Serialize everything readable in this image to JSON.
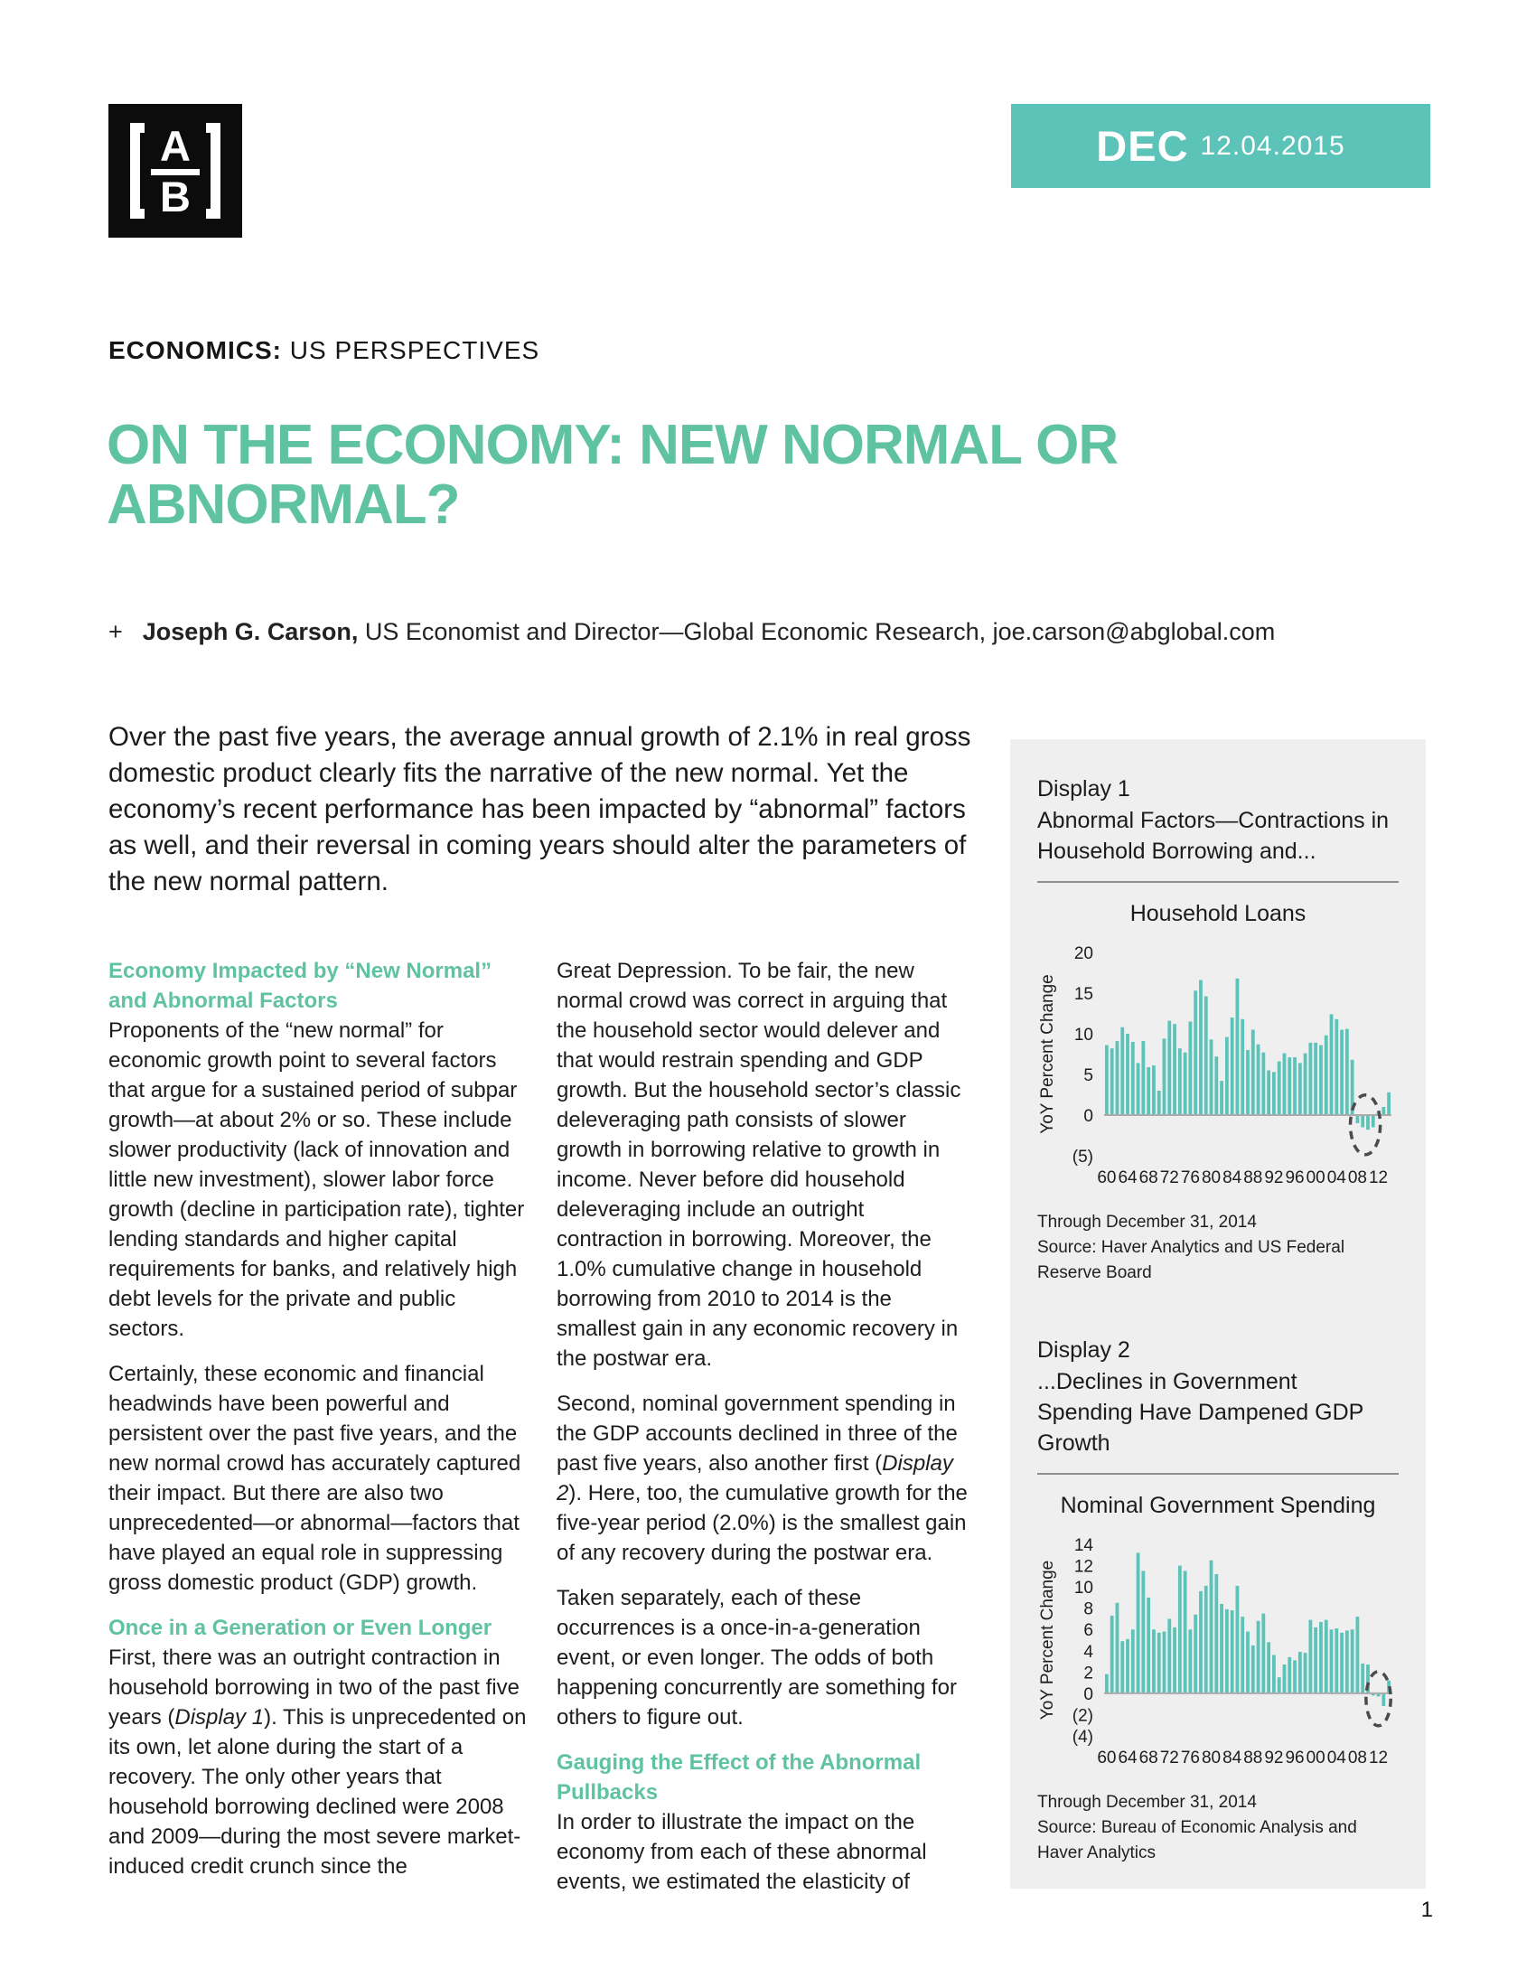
{
  "page": {
    "number": "1"
  },
  "brand": {
    "logo_letters": {
      "a": "A",
      "b": "B"
    },
    "banner": {
      "month": "DEC",
      "date": "12.04.2015"
    }
  },
  "eyebrow": {
    "category": "ECONOMICS:",
    "rest": " US PERSPECTIVES"
  },
  "title": "ON THE ECONOMY: NEW NORMAL OR ABNORMAL?",
  "byline": {
    "bullet": "+",
    "name": "Joseph G. Carson,",
    "rest": " US Economist and Director—Global Economic Research, joe.carson@abglobal.com"
  },
  "lead": "Over the past five years, the average annual growth of 2.1% in real gross domestic product clearly fits the narrative of the new normal. Yet the economy’s recent performance has been impacted by “abnormal” factors as well, and their reversal in coming years should alter the parameters of the new normal pattern.",
  "columns": {
    "left": [
      {
        "type": "heading",
        "text": "Economy Impacted by “New Normal” and Abnormal Factors"
      },
      {
        "type": "para",
        "segments": [
          {
            "t": "Proponents of the “new normal” for economic growth point to several factors that argue for a sustained period of subpar growth—at about 2% or so. These include slower productivity (lack of innovation and little new investment), slower labor force growth (decline in participation rate), tighter lending standards and higher capital requirements for banks, and relatively high debt levels for the private and public sectors."
          }
        ]
      },
      {
        "type": "para",
        "segments": [
          {
            "t": "Certainly, these economic and financial headwinds have been powerful and persistent over the past five years, and the new normal crowd has accurately captured their impact. But there are also two unprecedented—or abnormal—factors that have played an equal role in suppressing gross domestic product (GDP) growth."
          }
        ]
      },
      {
        "type": "heading",
        "text": "Once in a Generation or Even Longer"
      },
      {
        "type": "para",
        "segments": [
          {
            "t": "First, there was an outright contraction in household borrowing in two of the past five years ("
          },
          {
            "t": "Display 1",
            "i": true
          },
          {
            "t": "). This is unprecedented on its own, let alone during the start of a recovery. The only other years that household borrowing declined were 2008 and 2009—during the most severe market-induced credit crunch since the"
          }
        ]
      }
    ],
    "middle": [
      {
        "type": "para",
        "segments": [
          {
            "t": "Great Depression. To be fair, the new normal crowd was correct in arguing that the household sector would delever and that would restrain spending and GDP growth. But the household sector’s classic deleveraging path consists of slower growth in borrowing relative to growth in income. Never before did household deleveraging include an outright contraction in borrowing. Moreover, the 1.0% cumulative change in household borrowing from 2010 to 2014 is the smallest gain in any economic recovery in the postwar era."
          }
        ]
      },
      {
        "type": "para",
        "segments": [
          {
            "t": "Second, nominal government spending in the GDP accounts declined in three of the past five years, also another first ("
          },
          {
            "t": "Display 2",
            "i": true
          },
          {
            "t": "). Here, too, the cumulative growth for the five-year period (2.0%) is the smallest gain of any recovery during the postwar era."
          }
        ]
      },
      {
        "type": "para",
        "segments": [
          {
            "t": "Taken separately, each of these occurrences is a once-in-a-generation event, or even longer. The odds of both happening concurrently are something for others to figure out."
          }
        ]
      },
      {
        "type": "heading",
        "text": "Gauging the Effect of the Abnormal Pullbacks"
      },
      {
        "type": "para",
        "segments": [
          {
            "t": "In order to illustrate the impact on the economy from each of these abnormal events, we estimated the elasticity of"
          }
        ]
      }
    ]
  },
  "sidebar": {
    "display1": {
      "label": "Display 1",
      "title": "Abnormal Factors—Contractions in Household Borrowing and...",
      "through": "Through December 31, 2014",
      "source": "Source: Haver Analytics and US Federal Reserve Board"
    },
    "display2": {
      "label": "Display 2",
      "title": "...Declines in Government Spending Have Dampened GDP Growth",
      "through": "Through December 31, 2014",
      "source": "Source: Bureau of Economic Analysis and Haver Analytics"
    }
  },
  "chart_data": [
    {
      "type": "bar",
      "title": "Household Loans",
      "ylabel": "YoY Percent Change",
      "ylim": [
        -5,
        20
      ],
      "yticks": [
        {
          "v": 20,
          "label": "20"
        },
        {
          "v": 15,
          "label": "15"
        },
        {
          "v": 10,
          "label": "10"
        },
        {
          "v": 5,
          "label": "5"
        },
        {
          "v": 0,
          "label": "0"
        },
        {
          "v": -5,
          "label": "(5)"
        }
      ],
      "year_start": 1960,
      "year_end": 2014,
      "xtick_labels": [
        "60",
        "64",
        "68",
        "72",
        "76",
        "80",
        "84",
        "88",
        "92",
        "96",
        "00",
        "04",
        "08",
        "12"
      ],
      "values": [
        8.6,
        8.2,
        9.1,
        10.8,
        10.0,
        9.0,
        6.4,
        9.1,
        5.9,
        6.1,
        3.0,
        9.4,
        11.6,
        11.2,
        8.2,
        7.7,
        11.5,
        15.3,
        16.6,
        14.6,
        9.3,
        7.2,
        4.2,
        9.6,
        12.0,
        16.8,
        11.8,
        8.0,
        10.5,
        8.7,
        7.7,
        5.5,
        5.3,
        6.6,
        7.6,
        7.1,
        7.1,
        6.4,
        7.6,
        8.9,
        8.9,
        8.6,
        9.8,
        12.4,
        11.8,
        10.5,
        10.6,
        6.8,
        -1.0,
        -1.5,
        -1.8,
        -1.5,
        0.3,
        1.0,
        2.8
      ],
      "bar_color": "#5CC3B9",
      "grid": false,
      "annotation": {
        "type": "dashed-ellipse",
        "year_start": 2008,
        "year_end": 2011,
        "center_value": -1.2
      }
    },
    {
      "type": "bar",
      "title": "Nominal Government Spending",
      "ylabel": "YoY Percent Change",
      "ylim": [
        -4,
        14
      ],
      "yticks": [
        {
          "v": 14,
          "label": "14"
        },
        {
          "v": 12,
          "label": "12"
        },
        {
          "v": 10,
          "label": "10"
        },
        {
          "v": 8,
          "label": "8"
        },
        {
          "v": 6,
          "label": "6"
        },
        {
          "v": 4,
          "label": "4"
        },
        {
          "v": 2,
          "label": "2"
        },
        {
          "v": 0,
          "label": "0"
        },
        {
          "v": -2,
          "label": "(2)"
        },
        {
          "v": -4,
          "label": "(4)"
        }
      ],
      "year_start": 1960,
      "year_end": 2014,
      "xtick_labels": [
        "60",
        "64",
        "68",
        "72",
        "76",
        "80",
        "84",
        "88",
        "92",
        "96",
        "00",
        "04",
        "08",
        "12"
      ],
      "values": [
        1.8,
        7.3,
        8.5,
        4.9,
        5.1,
        6.0,
        13.2,
        11.5,
        9.0,
        6.0,
        5.7,
        5.8,
        7.0,
        6.2,
        12.0,
        11.5,
        6.0,
        7.4,
        9.6,
        10.1,
        12.5,
        11.2,
        8.4,
        7.9,
        7.8,
        10.1,
        7.2,
        5.8,
        4.5,
        6.8,
        7.5,
        4.8,
        3.6,
        1.5,
        2.7,
        3.4,
        3.1,
        3.9,
        3.8,
        6.9,
        6.2,
        6.7,
        6.9,
        6.0,
        6.1,
        5.7,
        5.9,
        6.0,
        7.2,
        2.8,
        2.7,
        -0.2,
        -0.3,
        -1.2,
        1.2
      ],
      "bar_color": "#5CC3B9",
      "grid": false,
      "annotation": {
        "type": "dashed-ellipse",
        "year_start": 2011,
        "year_end": 2013,
        "center_value": -0.5
      }
    }
  ],
  "colors": {
    "teal": "#5CC3B9",
    "green": "#5FC2A1",
    "panel": "#EFEFEF",
    "ink": "#1D1D1D"
  }
}
